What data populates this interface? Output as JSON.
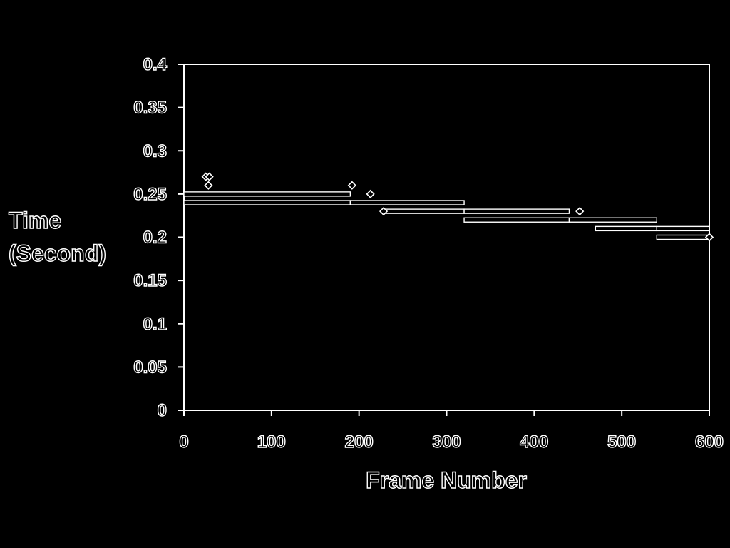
{
  "chart_data": {
    "type": "scatter",
    "xlabel": "Frame Number",
    "ylabel": [
      "Time",
      "(Second)"
    ],
    "xlim": [
      0,
      600
    ],
    "ylim": [
      0,
      0.4
    ],
    "xticks": [
      "0",
      "100",
      "200",
      "300",
      "400",
      "500",
      "600"
    ],
    "yticks": [
      "0",
      "0.05",
      "0.1",
      "0.15",
      "0.2",
      "0.25",
      "0.3",
      "0.35",
      "0.4"
    ],
    "grid": false,
    "legend": "none",
    "colors": {
      "background": "#000000",
      "foreground": "#ffffff"
    },
    "segments": [
      {
        "x": [
          0,
          190
        ],
        "y": 0.25
      },
      {
        "x": [
          0,
          190
        ],
        "y": 0.24
      },
      {
        "x": [
          190,
          320
        ],
        "y": 0.24
      },
      {
        "x": [
          230,
          320
        ],
        "y": 0.23
      },
      {
        "x": [
          320,
          440
        ],
        "y": 0.23
      },
      {
        "x": [
          320,
          440
        ],
        "y": 0.22
      },
      {
        "x": [
          440,
          540
        ],
        "y": 0.22
      },
      {
        "x": [
          470,
          540
        ],
        "y": 0.21
      },
      {
        "x": [
          540,
          600
        ],
        "y": 0.21
      },
      {
        "x": [
          540,
          600
        ],
        "y": 0.2
      }
    ],
    "outliers": [
      {
        "x": 25,
        "y": 0.27
      },
      {
        "x": 29,
        "y": 0.27
      },
      {
        "x": 28,
        "y": 0.26
      },
      {
        "x": 192,
        "y": 0.26
      },
      {
        "x": 213,
        "y": 0.25
      },
      {
        "x": 228,
        "y": 0.23
      },
      {
        "x": 452,
        "y": 0.23
      },
      {
        "x": 600,
        "y": 0.2
      }
    ]
  }
}
